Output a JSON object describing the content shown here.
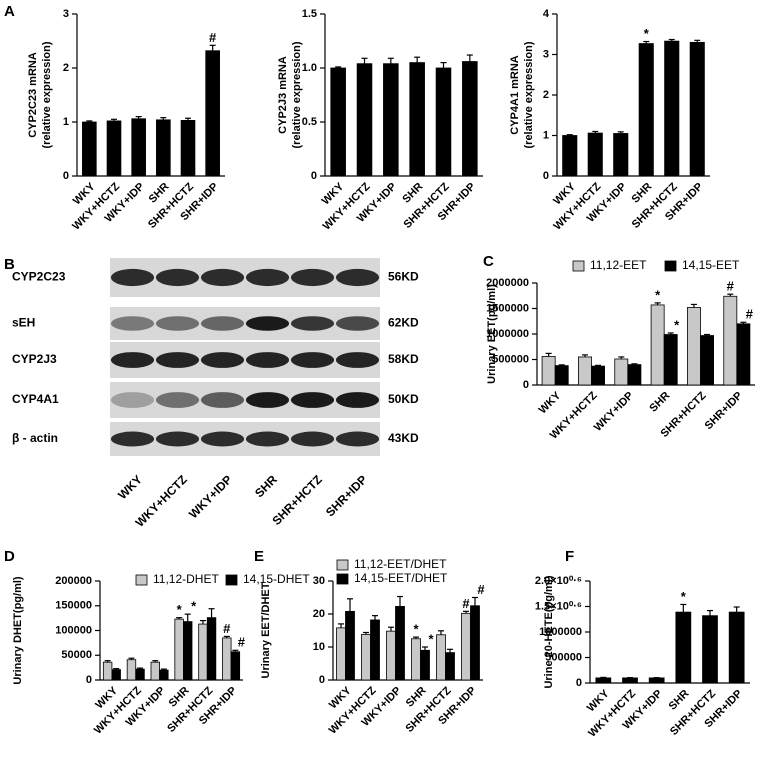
{
  "chart_data": [
    {
      "type": "bar",
      "panel": "A",
      "ylabel": [
        "CYP2C23 mRNA",
        "(relative expression)"
      ],
      "categories": [
        "WKY",
        "WKY+HCTZ",
        "WKY+IDP",
        "SHR",
        "SHR+HCTZ",
        "SHR+IDP"
      ],
      "values": [
        1.0,
        1.02,
        1.06,
        1.04,
        1.03,
        2.32
      ],
      "errors": [
        0.02,
        0.03,
        0.04,
        0.04,
        0.04,
        0.1
      ],
      "annotations": [
        null,
        null,
        null,
        null,
        null,
        "#"
      ],
      "color": "#000000",
      "ylim": [
        0,
        3
      ],
      "yticks": [
        0,
        1,
        2,
        3
      ]
    },
    {
      "type": "bar",
      "ylabel": [
        "CYP2J3 mRNA",
        "(relative expression)"
      ],
      "categories": [
        "WKY",
        "WKY+HCTZ",
        "WKY+IDP",
        "SHR",
        "SHR+HCTZ",
        "SHR+IDP"
      ],
      "values": [
        1.0,
        1.04,
        1.04,
        1.05,
        1.0,
        1.06
      ],
      "errors": [
        0.01,
        0.05,
        0.05,
        0.05,
        0.05,
        0.06
      ],
      "color": "#000000",
      "ylim": [
        0,
        1.5
      ],
      "yticks": [
        0,
        0.5,
        {
          "value": 1,
          "label": "1.0"
        },
        1.5
      ]
    },
    {
      "type": "bar",
      "ylabel": [
        "CYP4A1 mRNA",
        "(relative expression)"
      ],
      "categories": [
        "WKY",
        "WKY+HCTZ",
        "WKY+IDP",
        "SHR",
        "SHR+HCTZ",
        "SHR+IDP"
      ],
      "values": [
        1.0,
        1.06,
        1.05,
        3.27,
        3.33,
        3.3
      ],
      "errors": [
        0.02,
        0.04,
        0.04,
        0.05,
        0.04,
        0.05
      ],
      "annotations": [
        null,
        null,
        null,
        "*",
        null,
        null
      ],
      "color": "#000000",
      "ylim": [
        0,
        4
      ],
      "yticks": [
        0,
        1,
        2,
        3,
        4
      ]
    },
    {
      "type": "bar",
      "panel": "C",
      "ylabel": [
        "Urinary EET(pg/ml)"
      ],
      "categories": [
        "WKY",
        "WKY+HCTZ",
        "WKY+IDP",
        "SHR",
        "SHR+HCTZ",
        "SHR+IDP"
      ],
      "series": [
        {
          "name": "11,12-EET",
          "color": "#c8c8c8",
          "values": [
            560000,
            550000,
            510000,
            1570000,
            1520000,
            1740000
          ],
          "errors": [
            60000,
            40000,
            40000,
            40000,
            60000,
            40000
          ],
          "annotations": [
            null,
            null,
            null,
            "*",
            null,
            "#"
          ]
        },
        {
          "name": "14,15-EET",
          "color": "#000000",
          "values": [
            380000,
            370000,
            400000,
            990000,
            970000,
            1200000
          ],
          "errors": [
            15000,
            15000,
            15000,
            30000,
            20000,
            30000
          ],
          "annotations": [
            null,
            null,
            null,
            "*",
            null,
            "#"
          ]
        }
      ],
      "ylim": [
        0,
        2000000
      ],
      "yticks": [
        0,
        500000,
        1000000,
        1500000,
        2000000
      ]
    },
    {
      "type": "bar",
      "panel": "D",
      "ylabel": [
        "Urinary DHET(pg/ml)"
      ],
      "categories": [
        "WKY",
        "WKY+HCTZ",
        "WKY+IDP",
        "SHR",
        "SHR+HCTZ",
        "SHR+IDP"
      ],
      "series": [
        {
          "name": "11,12-DHET",
          "color": "#c8c8c8",
          "values": [
            36000,
            41000,
            36000,
            123000,
            113000,
            85000
          ],
          "errors": [
            3000,
            3000,
            3000,
            3000,
            7000,
            3000
          ],
          "annotations": [
            null,
            null,
            null,
            "*",
            null,
            "#"
          ]
        },
        {
          "name": "14,15-DHET",
          "color": "#000000",
          "values": [
            21000,
            22000,
            20000,
            118000,
            126000,
            57000
          ],
          "errors": [
            2000,
            2000,
            2000,
            15000,
            18000,
            3000
          ],
          "annotations": [
            null,
            null,
            null,
            "*",
            null,
            "#"
          ]
        }
      ],
      "ylim": [
        0,
        200000
      ],
      "yticks": [
        0,
        50000,
        100000,
        150000,
        200000
      ]
    },
    {
      "type": "bar",
      "panel": "E",
      "ylabel": [
        "Urinary EET/DHET"
      ],
      "categories": [
        "WKY",
        "WKY+HCTZ",
        "WKY+IDP",
        "SHR",
        "SHR+HCTZ",
        "SHR+IDP"
      ],
      "series": [
        {
          "name": "11,12-EET/DHET",
          "color": "#c8c8c8",
          "values": [
            15.8,
            13.8,
            14.8,
            12.5,
            13.7,
            20.2
          ],
          "errors": [
            1.2,
            0.6,
            1.2,
            0.5,
            1.2,
            0.6
          ],
          "annotations": [
            null,
            null,
            null,
            "*",
            null,
            "#"
          ]
        },
        {
          "name": "14,15-EET/DHET",
          "color": "#000000",
          "values": [
            20.8,
            18.2,
            22.3,
            9.0,
            8.3,
            22.5
          ],
          "errors": [
            3.8,
            1.3,
            3.0,
            1.0,
            1.0,
            2.5
          ],
          "annotations": [
            null,
            null,
            null,
            "*",
            null,
            "#"
          ]
        }
      ],
      "ylim": [
        0,
        30
      ],
      "yticks": [
        0,
        10,
        20,
        30
      ]
    },
    {
      "type": "bar",
      "panel": "F",
      "ylabel": [
        "Urine 20-HETE(pg/ml)"
      ],
      "categories": [
        "WKY",
        "WKY+HCTZ",
        "WKY+IDP",
        "SHR",
        "SHR+HCTZ",
        "SHR+IDP"
      ],
      "values": [
        100000,
        100000,
        100000,
        1390000,
        1320000,
        1390000
      ],
      "errors": [
        10000,
        5000,
        5000,
        150000,
        100000,
        100000
      ],
      "annotations": [
        null,
        null,
        null,
        "*",
        null,
        null
      ],
      "color": "#000000",
      "ylim": [
        0,
        2000000
      ],
      "yticks": [
        0,
        500000,
        1000000,
        {
          "value": 1500000,
          "label": "1.5×10⁰·⁶"
        },
        {
          "value": 2000000,
          "label": "2.0×10⁰·⁶"
        }
      ]
    }
  ],
  "blot": {
    "panel": "B",
    "rows": [
      {
        "label": "CYP2C23",
        "size": "56KD"
      },
      {
        "label": "sEH",
        "size": "62KD"
      },
      {
        "label": "CYP2J3",
        "size": "58KD"
      },
      {
        "label": "CYP4A1",
        "size": "50KD"
      },
      {
        "label": "β - actin",
        "size": "43KD"
      }
    ],
    "categories": [
      "WKY",
      "WKY+HCTZ",
      "WKY+IDP",
      "SHR",
      "SHR+HCTZ",
      "SHR+IDP"
    ]
  }
}
